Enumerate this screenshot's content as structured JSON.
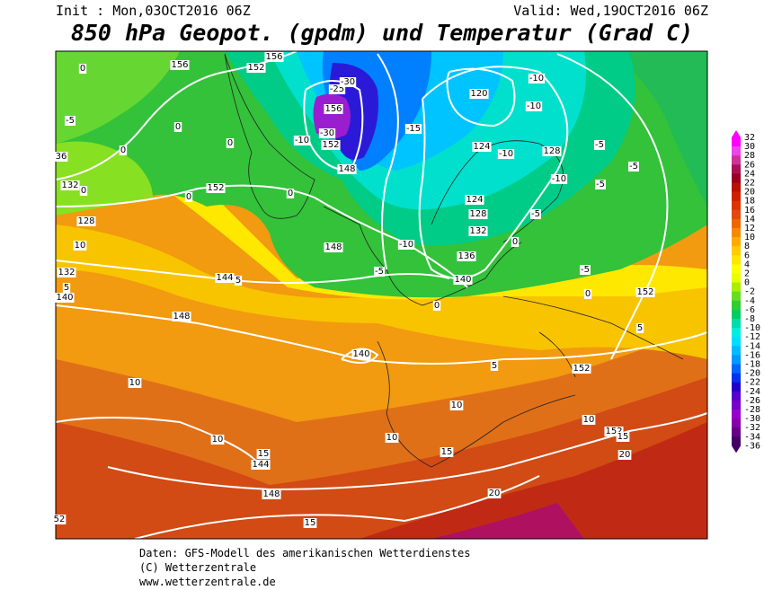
{
  "header": {
    "init": "Init : Mon,03OCT2016 06Z",
    "valid": "Valid: Wed,19OCT2016 06Z",
    "title": "850 hPa Geopot. (gpdm) und Temperatur (Grad C)"
  },
  "map": {
    "labels": [
      "0",
      "156",
      "152",
      "156",
      "-25",
      "-30",
      "156",
      "-30",
      "-10",
      "152",
      "148",
      "-15",
      "-10",
      "120",
      "-10",
      "124",
      "-10",
      "128",
      "-5",
      "-5",
      "-10",
      "-5",
      "124",
      "128",
      "-5",
      "132",
      "0",
      "136",
      "-5",
      "140",
      "152",
      "0",
      "-5",
      "0",
      "0",
      "0",
      "36",
      "132",
      "0",
      "0",
      "152",
      "0",
      "128",
      "10",
      "148",
      "-10",
      "-5",
      "144",
      "5",
      "132",
      "5",
      "140",
      "0",
      "148",
      "140",
      "5",
      "152",
      "5",
      "10",
      "10",
      "10",
      "152",
      "15",
      "10",
      "10",
      "15",
      "144",
      "15",
      "20",
      "148",
      "20",
      "15",
      "52"
    ]
  },
  "colorbar": {
    "labels": [
      32,
      30,
      28,
      26,
      24,
      22,
      20,
      18,
      16,
      14,
      12,
      10,
      8,
      6,
      4,
      2,
      0,
      -2,
      -4,
      -6,
      -8,
      -10,
      -12,
      -14,
      -16,
      -18,
      -20,
      -22,
      -24,
      -26,
      -28,
      -30,
      -32,
      -34,
      -36
    ],
    "colors": [
      "#ff00ff",
      "#ee44ee",
      "#cc3399",
      "#aa1155",
      "#990022",
      "#bb1100",
      "#cc2200",
      "#dd3300",
      "#e04a10",
      "#ee6600",
      "#f58a00",
      "#ffaa00",
      "#ffcc00",
      "#ffe600",
      "#ffff00",
      "#e6ff00",
      "#aaee00",
      "#66dd22",
      "#33cc33",
      "#00cc66",
      "#00ddaa",
      "#00eedd",
      "#00ddff",
      "#00bbff",
      "#0099ff",
      "#0066ff",
      "#0033ee",
      "#2200cc",
      "#5500cc",
      "#7700cc",
      "#9900cc",
      "#8800aa",
      "#660088",
      "#440066"
    ]
  },
  "footer": {
    "lines": [
      "Daten: GFS-Modell des amerikanischen Wetterdienstes",
      "(C) Wetterzentrale",
      "www.wetterzentrale.de"
    ]
  }
}
